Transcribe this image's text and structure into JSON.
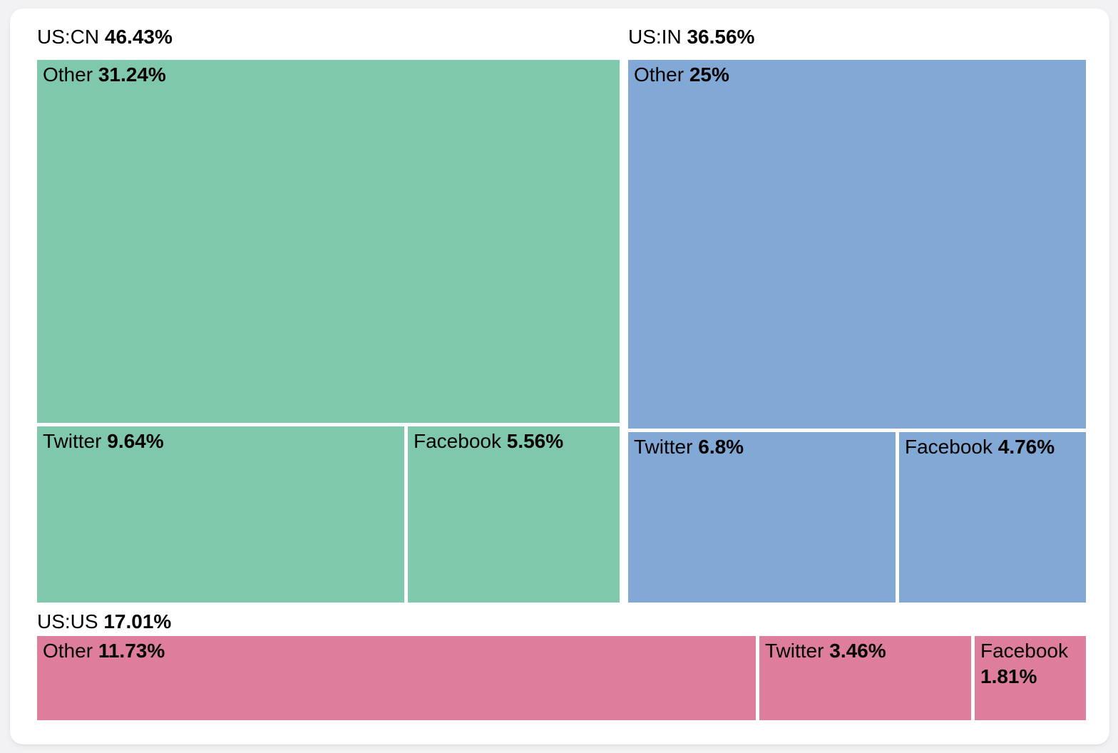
{
  "page": {
    "background_color": "#f2f2f4",
    "card_background_color": "#ffffff",
    "text_color": "#000000"
  },
  "chart_data": {
    "type": "treemap",
    "unit": "%",
    "gap_color": "#ffffff",
    "groups": [
      {
        "label": "US:CN",
        "value": 46.43,
        "display": "46.43%",
        "color": "#80c8ac",
        "children": [
          {
            "label": "Other",
            "value": 31.24,
            "display": "31.24%"
          },
          {
            "label": "Twitter",
            "value": 9.64,
            "display": "9.64%"
          },
          {
            "label": "Facebook",
            "value": 5.56,
            "display": "5.56%"
          }
        ]
      },
      {
        "label": "US:IN",
        "value": 36.56,
        "display": "36.56%",
        "color": "#82a8d6",
        "children": [
          {
            "label": "Other",
            "value": 25,
            "display": "25%"
          },
          {
            "label": "Twitter",
            "value": 6.8,
            "display": "6.8%"
          },
          {
            "label": "Facebook",
            "value": 4.76,
            "display": "4.76%"
          }
        ]
      },
      {
        "label": "US:US",
        "value": 17.01,
        "display": "17.01%",
        "color": "#df7d9c",
        "children": [
          {
            "label": "Other",
            "value": 11.73,
            "display": "11.73%"
          },
          {
            "label": "Twitter",
            "value": 3.46,
            "display": "3.46%"
          },
          {
            "label": "Facebook",
            "value": 1.81,
            "display": "1.81%"
          }
        ]
      }
    ]
  }
}
